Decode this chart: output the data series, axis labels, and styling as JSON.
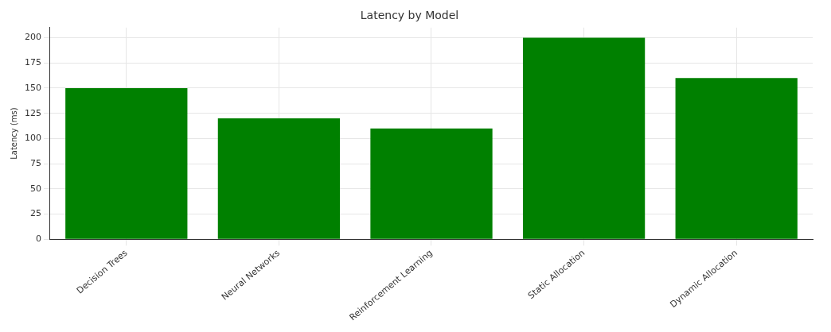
{
  "chart_data": {
    "type": "bar",
    "title": "Latency by Model",
    "ylabel": "Latency (ms)",
    "categories": [
      "Decision Trees",
      "Neural Networks",
      "Reinforcement Learning",
      "Static Allocation",
      "Dynamic Allocation"
    ],
    "values": [
      150,
      120,
      110,
      200,
      160
    ],
    "color": "#008000",
    "ylim": [
      0,
      210
    ],
    "yticks": [
      0,
      25,
      50,
      75,
      100,
      125,
      150,
      175,
      200
    ],
    "grid": true
  }
}
